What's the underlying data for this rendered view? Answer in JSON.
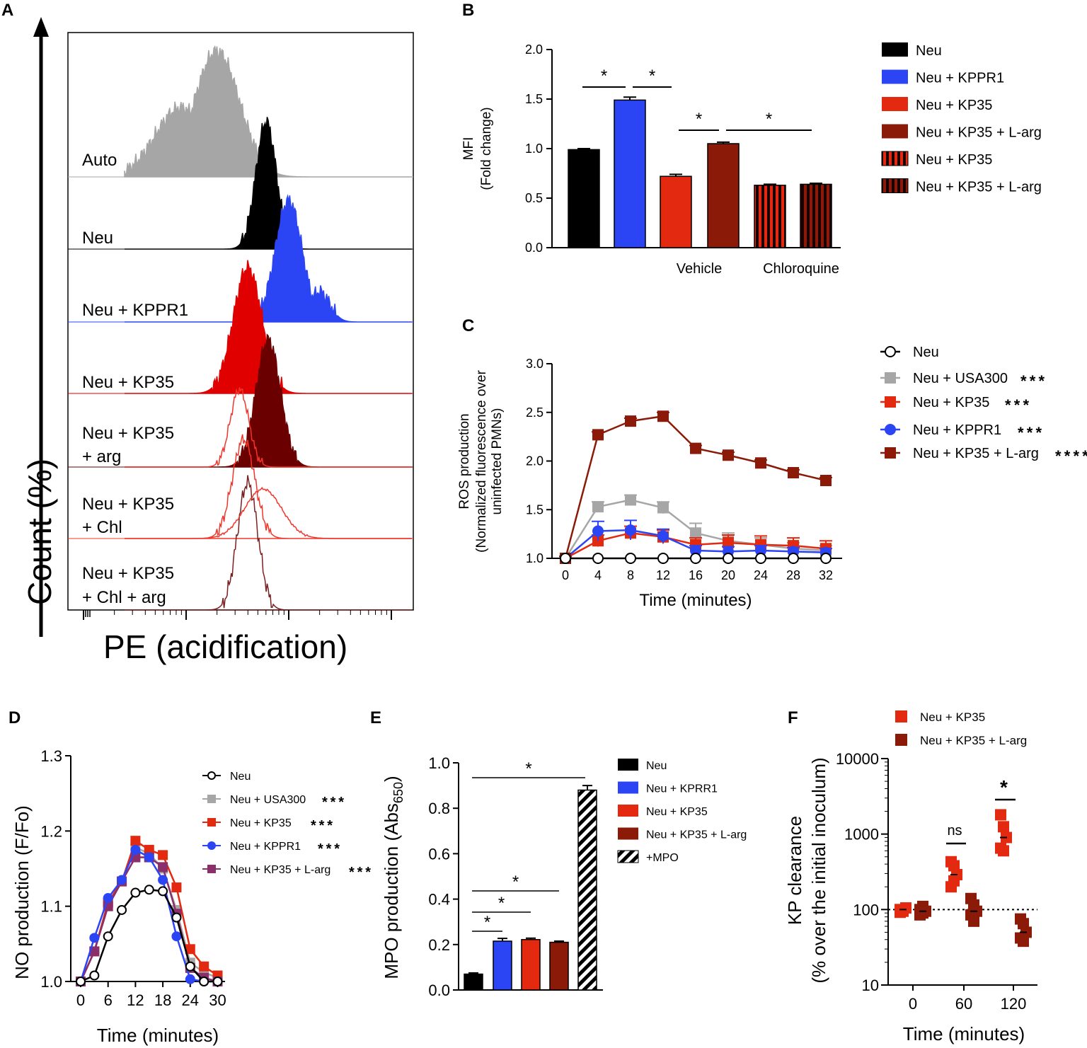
{
  "colors": {
    "black": "#000000",
    "blue": "#2b45f5",
    "red": "#e3290f",
    "darkred": "#8b1a08",
    "grey": "#a6a6a6",
    "purple": "#8a2f6a",
    "lred": "#f0362b"
  },
  "panelA": {
    "label": "A",
    "ylabel": "Count (%)",
    "xlabel": "PE (acidification)",
    "chart_data": {
      "type": "histogram",
      "x_scale": "log",
      "traces": [
        {
          "label": "Auto",
          "fill": "grey",
          "peak_x_log": 2.3
        },
        {
          "label": "Neu",
          "fill": "black",
          "peak_x_log": 2.78
        },
        {
          "label": "Neu + KPPR1",
          "fill": "blue",
          "peak_x_log": 3.0
        },
        {
          "label": "Neu + KP35",
          "fill": "red",
          "peak_x_log": 2.63
        },
        {
          "label": "Neu + KP35 + arg",
          "fill": "darkred",
          "peak_x_log": 2.8,
          "overlay": "Neu + KP35 + Chl (open red)"
        },
        {
          "label": "Neu + KP35 + Chl",
          "fill": "none",
          "peak_x_log": 2.56
        },
        {
          "label": "Neu + KP35 + Chl + arg",
          "fill": "none",
          "peak_x_log": 2.56
        }
      ]
    },
    "trace_labels": [
      [
        "Auto"
      ],
      [
        "Neu"
      ],
      [
        "Neu + KPPR1"
      ],
      [
        "Neu + KP35"
      ],
      [
        "Neu + KP35",
        "+ arg"
      ],
      [
        "Neu + KP35",
        "+ Chl"
      ],
      [
        "Neu + KP35",
        "+ Chl + arg"
      ]
    ]
  },
  "panelB": {
    "label": "B",
    "chart_data": {
      "type": "bar",
      "ylabel_1": "MFI",
      "ylabel_2": "(Fold change)",
      "yticks": [
        "0.0",
        "0.5",
        "1.0",
        "1.5",
        "2.0"
      ],
      "ylim": [
        0,
        2.0
      ],
      "groups": [
        "Vehicle",
        "Chloroquine"
      ],
      "bars": [
        {
          "name": "Neu",
          "value": 0.99,
          "err": 0.01,
          "color": "black",
          "pattern": "solid"
        },
        {
          "name": "Neu + KPPR1",
          "value": 1.49,
          "err": 0.03,
          "color": "blue",
          "pattern": "solid"
        },
        {
          "name": "Neu + KP35",
          "value": 0.72,
          "err": 0.02,
          "color": "red",
          "pattern": "solid"
        },
        {
          "name": "Neu + KP35 + L-arg",
          "value": 1.05,
          "err": 0.015,
          "color": "darkred",
          "pattern": "solid"
        },
        {
          "name": "Neu + KP35",
          "value": 0.63,
          "err": 0.01,
          "color": "red",
          "pattern": "stripes"
        },
        {
          "name": "Neu + KP35 + L-arg",
          "value": 0.64,
          "err": 0.01,
          "color": "darkred",
          "pattern": "stripes"
        }
      ],
      "significance": [
        {
          "from": 0,
          "to": 1,
          "label": "*"
        },
        {
          "from": 1,
          "to": 2,
          "label": "*"
        },
        {
          "from": 2,
          "to": 3,
          "label": "*"
        },
        {
          "from": 3,
          "to": 5,
          "label": "*"
        }
      ]
    }
  },
  "panelC": {
    "label": "C",
    "chart_data": {
      "type": "line",
      "ylabel_1": "ROS production",
      "ylabel_2": "(Normalized fluorescence over",
      "ylabel_3": "uninfected PMNs)",
      "xlabel": "Time (minutes)",
      "x": [
        0,
        4,
        8,
        12,
        16,
        20,
        24,
        28,
        32
      ],
      "yticks": [
        "1.0",
        "1.5",
        "2.0",
        "2.5",
        "3.0"
      ],
      "ylim": [
        1.0,
        3.0
      ],
      "series": [
        {
          "name": "Neu",
          "color": "black",
          "marker": "open-circle",
          "values": [
            1,
            1,
            1,
            1,
            1,
            1,
            1,
            1,
            1
          ],
          "err": [
            0,
            0,
            0,
            0,
            0,
            0,
            0,
            0,
            0
          ],
          "stars": []
        },
        {
          "name": "Neu + USA300",
          "color": "grey",
          "marker": "square",
          "values": [
            1,
            1.53,
            1.6,
            1.52,
            1.26,
            1.18,
            1.14,
            1.1,
            1.08
          ],
          "err": [
            0.02,
            0.05,
            0.05,
            0.06,
            0.1,
            0.08,
            0.07,
            0.06,
            0.05
          ],
          "stars": [
            "black",
            "blue",
            "darkred"
          ]
        },
        {
          "name": "Neu + KP35",
          "color": "red",
          "marker": "square",
          "values": [
            1,
            1.18,
            1.26,
            1.22,
            1.14,
            1.16,
            1.14,
            1.13,
            1.1
          ],
          "err": [
            0.02,
            0.06,
            0.07,
            0.07,
            0.07,
            0.08,
            0.09,
            0.08,
            0.08
          ],
          "stars": [
            "black",
            "grey",
            "darkred"
          ]
        },
        {
          "name": "Neu + KPPR1",
          "color": "blue",
          "marker": "circle",
          "values": [
            1,
            1.28,
            1.29,
            1.23,
            1.08,
            1.07,
            1.08,
            1.07,
            1.06
          ],
          "err": [
            0.02,
            0.1,
            0.1,
            0.07,
            0.05,
            0.05,
            0.05,
            0.04,
            0.04
          ],
          "stars": [
            "black",
            "grey",
            "darkred"
          ]
        },
        {
          "name": "Neu + KP35 + L-arg",
          "color": "darkred",
          "marker": "square",
          "values": [
            1,
            2.27,
            2.41,
            2.46,
            2.13,
            2.06,
            1.98,
            1.88,
            1.8
          ],
          "err": [
            0.02,
            0.03,
            0.03,
            0.04,
            0.03,
            0.03,
            0.03,
            0.03,
            0.03
          ],
          "stars": [
            "black",
            "grey",
            "red",
            "blue"
          ]
        }
      ]
    }
  },
  "panelD": {
    "label": "D",
    "chart_data": {
      "type": "line",
      "ylabel": "NO production (F/Fo)",
      "xlabel": "Time (minutes)",
      "x": [
        0,
        3,
        6,
        9,
        12,
        15,
        18,
        21,
        24,
        27,
        30
      ],
      "xticks": [
        "0",
        "6",
        "12",
        "18",
        "24",
        "30"
      ],
      "yticks": [
        "1.0",
        "1.1",
        "1.2",
        "1.3"
      ],
      "ylim": [
        1.0,
        1.3
      ],
      "series": [
        {
          "name": "Neu",
          "color": "black",
          "marker": "open-circle",
          "values": [
            1.0,
            1.008,
            1.06,
            1.095,
            1.118,
            1.122,
            1.12,
            1.085,
            1.02,
            1.0,
            1.0
          ],
          "stars": []
        },
        {
          "name": "Neu + USA300",
          "color": "grey",
          "marker": "square",
          "values": [
            1.0,
            1.04,
            1.105,
            1.133,
            1.178,
            1.17,
            1.15,
            1.095,
            1.025,
            1.012,
            1.005
          ],
          "stars": [
            "black",
            "blue",
            "red"
          ]
        },
        {
          "name": "Neu + KP35",
          "color": "red",
          "marker": "square",
          "values": [
            1.0,
            1.04,
            1.105,
            1.133,
            1.187,
            1.175,
            1.168,
            1.125,
            1.043,
            1.02,
            1.008
          ],
          "stars": [
            "black",
            "blue",
            "red"
          ]
        },
        {
          "name": "Neu + KPPR1",
          "color": "blue",
          "marker": "circle",
          "values": [
            1.0,
            1.058,
            1.111,
            1.135,
            1.175,
            1.165,
            1.135,
            1.06,
            1.003,
            1.0,
            1.0
          ],
          "stars": [
            "black",
            "grey",
            "red"
          ]
        },
        {
          "name": "Neu + KP35 + L-arg",
          "color": "purple",
          "marker": "square",
          "values": [
            1.0,
            1.04,
            1.1,
            1.133,
            1.165,
            1.165,
            1.152,
            1.09,
            1.018,
            1.005,
            1.0
          ],
          "stars": [
            "black",
            "red",
            "grey"
          ]
        }
      ]
    }
  },
  "panelE": {
    "label": "E",
    "chart_data": {
      "type": "bar",
      "ylabel": "MPO production (Abs",
      "ylabel_sub": "650",
      "ylabel_end": ")",
      "yticks": [
        "0.0",
        "0.2",
        "0.4",
        "0.6",
        "0.8",
        "1.0"
      ],
      "ylim": [
        0,
        1.0
      ],
      "bars": [
        {
          "name": "Neu",
          "value": 0.07,
          "err": 0.005,
          "color": "black",
          "pattern": "solid"
        },
        {
          "name": "Neu + KPRR1",
          "value": 0.215,
          "err": 0.012,
          "color": "blue",
          "pattern": "solid"
        },
        {
          "name": "Neu + KP35",
          "value": 0.222,
          "err": 0.006,
          "color": "red",
          "pattern": "solid"
        },
        {
          "name": "Neu + KP35 + L-arg",
          "value": 0.21,
          "err": 0.005,
          "color": "darkred",
          "pattern": "solid"
        },
        {
          "name": "+MPO",
          "value": 0.88,
          "err": 0.02,
          "color": "black",
          "pattern": "hatch"
        }
      ],
      "significance": [
        {
          "from": 0,
          "to": 1,
          "label": "*"
        },
        {
          "from": 0,
          "to": 2,
          "label": "*"
        },
        {
          "from": 0,
          "to": 3,
          "label": "*"
        },
        {
          "from": 0,
          "to": 4,
          "label": "*"
        }
      ]
    }
  },
  "panelF": {
    "label": "F",
    "chart_data": {
      "type": "scatter",
      "ylabel_1": "KP clearance",
      "ylabel_2": "(% over the initial inoculum)",
      "xlabel": "Time (minutes)",
      "y_scale": "log",
      "ylim": [
        10,
        10000
      ],
      "yticks": [
        "10",
        "100",
        "1000",
        "10000"
      ],
      "xticks": [
        "0",
        "60",
        "120"
      ],
      "reference_line": 100,
      "series": [
        {
          "name": "Neu + KP35",
          "color": "red",
          "groups": [
            {
              "x": "0",
              "values": [
                100,
                95,
                105,
                92
              ]
            },
            {
              "x": "60",
              "values": [
                430,
                380,
                290,
                200,
                240
              ]
            },
            {
              "x": "120",
              "values": [
                1800,
                1250,
                900,
                650,
                600
              ]
            }
          ]
        },
        {
          "name": "Neu + KP35 + L-arg",
          "color": "darkred",
          "groups": [
            {
              "x": "0",
              "values": [
                100,
                110,
                95,
                85,
                90
              ]
            },
            {
              "x": "60",
              "values": [
                140,
                115,
                95,
                85,
                70
              ]
            },
            {
              "x": "120",
              "values": [
                75,
                65,
                50,
                42,
                38
              ]
            }
          ]
        }
      ],
      "significance": [
        {
          "x": "60",
          "label": "ns"
        },
        {
          "x": "120",
          "label": "*"
        }
      ]
    }
  }
}
